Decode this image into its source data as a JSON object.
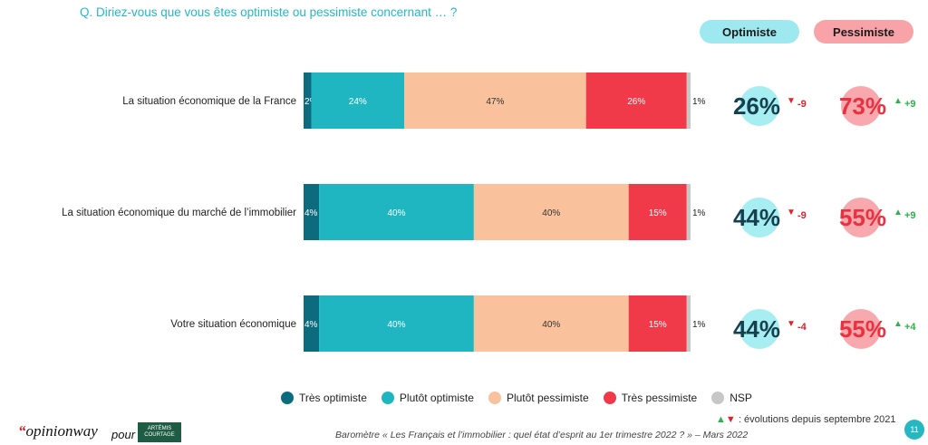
{
  "question": "Q. Diriez-vous que vous êtes optimiste ou pessimiste concernant … ?",
  "headers": {
    "optimiste": "Optimiste",
    "pessimiste": "Pessimiste"
  },
  "colors": {
    "tres_optimiste": "#0d6b7e",
    "plutot_optimiste": "#1fb6c1",
    "plutot_pessimiste": "#f9c29c",
    "tres_pessimiste": "#f03a4a",
    "nsp": "#c7c7c7",
    "opt_circle": "#a6eef2",
    "pes_circle": "#f8a9ae",
    "opt_text": "#16404f",
    "pes_text": "#e8323f",
    "up": "#2cb34a",
    "down": "#e0202a"
  },
  "chart_data": {
    "type": "bar",
    "orientation": "horizontal",
    "stacked": true,
    "categories": [
      "La situation économique de la France",
      "La situation économique du marché de l’immobilier",
      "Votre situation économique"
    ],
    "series": [
      {
        "name": "Très optimiste",
        "values": [
          2,
          4,
          4
        ],
        "labels": [
          "2%",
          "4%",
          "4%"
        ]
      },
      {
        "name": "Plutôt optimiste",
        "values": [
          24,
          40,
          40
        ],
        "labels": [
          "24%",
          "40%",
          "40%"
        ]
      },
      {
        "name": "Plutôt pessimiste",
        "values": [
          47,
          40,
          40
        ],
        "labels": [
          "47%",
          "40%",
          "40%"
        ]
      },
      {
        "name": "Très pessimiste",
        "values": [
          26,
          15,
          15
        ],
        "labels": [
          "26%",
          "15%",
          "15%"
        ]
      },
      {
        "name": "NSP",
        "values": [
          1,
          1,
          1
        ],
        "labels": [
          "1%",
          "1%",
          "1%"
        ]
      }
    ],
    "totals": {
      "optimiste": [
        "26%",
        "44%",
        "44%"
      ],
      "optimiste_change": [
        "-9",
        "-9",
        "-4"
      ],
      "pessimiste": [
        "73%",
        "55%",
        "55%"
      ],
      "pessimiste_change": [
        "+9",
        "+9",
        "+4"
      ]
    },
    "legend": "bottom"
  },
  "evolution_note": ": évolutions depuis septembre 2021",
  "footer": {
    "logo": "opinionway",
    "logo_quote": "“",
    "pour": "pour",
    "partner_line1": "ARTÉMIS",
    "partner_line2": "COURTAGE",
    "source": "Baromètre « Les Français et l’immobilier :  quel état d’esprit au 1er trimestre 2022 ? » – Mars 2022",
    "page": "11"
  }
}
